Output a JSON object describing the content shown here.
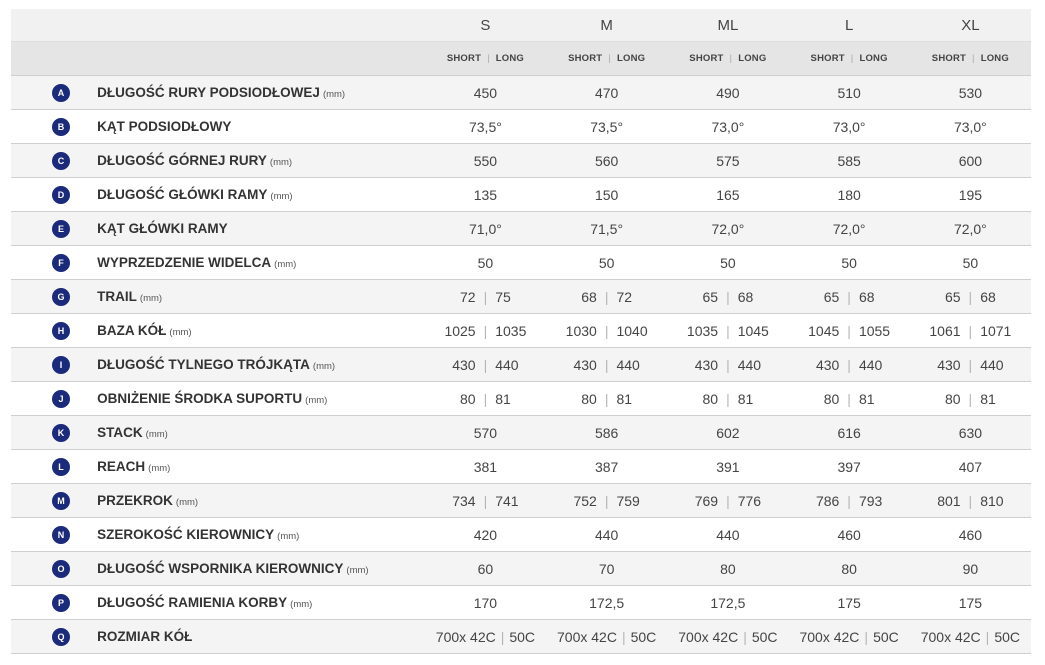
{
  "header": {
    "sizes": [
      "S",
      "M",
      "ML",
      "L",
      "XL"
    ],
    "sub_short": "SHORT",
    "sub_long": "LONG",
    "sub_sep": "|"
  },
  "rows": [
    {
      "letter": "A",
      "label": "DŁUGOŚĆ RURY PODSIODŁOWEJ",
      "unit": "(mm)",
      "values": [
        "450",
        "470",
        "490",
        "510",
        "530"
      ]
    },
    {
      "letter": "B",
      "label": "KĄT PODSIODŁOWY",
      "unit": "",
      "values": [
        "73,5°",
        "73,5°",
        "73,0°",
        "73,0°",
        "73,0°"
      ]
    },
    {
      "letter": "C",
      "label": "DŁUGOŚĆ GÓRNEJ RURY",
      "unit": "(mm)",
      "values": [
        "550",
        "560",
        "575",
        "585",
        "600"
      ]
    },
    {
      "letter": "D",
      "label": "DŁUGOŚĆ GŁÓWKI RAMY",
      "unit": "(mm)",
      "values": [
        "135",
        "150",
        "165",
        "180",
        "195"
      ]
    },
    {
      "letter": "E",
      "label": "KĄT GŁÓWKI RAMY",
      "unit": "",
      "values": [
        "71,0°",
        "71,5°",
        "72,0°",
        "72,0°",
        "72,0°"
      ]
    },
    {
      "letter": "F",
      "label": "WYPRZEDZENIE WIDELCA",
      "unit": "(mm)",
      "values": [
        "50",
        "50",
        "50",
        "50",
        "50"
      ]
    },
    {
      "letter": "G",
      "label": "TRAIL",
      "unit": "(mm)",
      "values": [
        [
          "72",
          "75"
        ],
        [
          "68",
          "72"
        ],
        [
          "65",
          "68"
        ],
        [
          "65",
          "68"
        ],
        [
          "65",
          "68"
        ]
      ]
    },
    {
      "letter": "H",
      "label": "BAZA KÓŁ",
      "unit": "(mm)",
      "values": [
        [
          "1025",
          "1035"
        ],
        [
          "1030",
          "1040"
        ],
        [
          "1035",
          "1045"
        ],
        [
          "1045",
          "1055"
        ],
        [
          "1061",
          "1071"
        ]
      ]
    },
    {
      "letter": "I",
      "label": "DŁUGOŚĆ TYLNEGO TRÓJKĄTA",
      "unit": "(mm)",
      "values": [
        [
          "430",
          "440"
        ],
        [
          "430",
          "440"
        ],
        [
          "430",
          "440"
        ],
        [
          "430",
          "440"
        ],
        [
          "430",
          "440"
        ]
      ]
    },
    {
      "letter": "J",
      "label": "OBNIŻENIE ŚRODKA SUPORTU",
      "unit": "(mm)",
      "values": [
        [
          "80",
          "81"
        ],
        [
          "80",
          "81"
        ],
        [
          "80",
          "81"
        ],
        [
          "80",
          "81"
        ],
        [
          "80",
          "81"
        ]
      ]
    },
    {
      "letter": "K",
      "label": "STACK",
      "unit": "(mm)",
      "values": [
        "570",
        "586",
        "602",
        "616",
        "630"
      ]
    },
    {
      "letter": "L",
      "label": "REACH",
      "unit": "(mm)",
      "values": [
        "381",
        "387",
        "391",
        "397",
        "407"
      ]
    },
    {
      "letter": "M",
      "label": "PRZEKROK",
      "unit": "(mm)",
      "values": [
        [
          "734",
          "741"
        ],
        [
          "752",
          "759"
        ],
        [
          "769",
          "776"
        ],
        [
          "786",
          "793"
        ],
        [
          "801",
          "810"
        ]
      ]
    },
    {
      "letter": "N",
      "label": "SZEROKOŚĆ KIEROWNICY",
      "unit": "(mm)",
      "values": [
        "420",
        "440",
        "440",
        "460",
        "460"
      ]
    },
    {
      "letter": "O",
      "label": "DŁUGOŚĆ WSPORNIKA KIEROWNICY",
      "unit": "(mm)",
      "values": [
        "60",
        "70",
        "80",
        "80",
        "90"
      ]
    },
    {
      "letter": "P",
      "label": "DŁUGOŚĆ RAMIENIA KORBY",
      "unit": "(mm)",
      "values": [
        "170",
        "172,5",
        "172,5",
        "175",
        "175"
      ]
    },
    {
      "letter": "Q",
      "label": "ROZMIAR KÓŁ",
      "unit": "",
      "values": [
        [
          "700x 42C",
          "50C"
        ],
        [
          "700x 42C",
          "50C"
        ],
        [
          "700x 42C",
          "50C"
        ],
        [
          "700x 42C",
          "50C"
        ],
        [
          "700x 42C",
          "50C"
        ]
      ]
    }
  ]
}
